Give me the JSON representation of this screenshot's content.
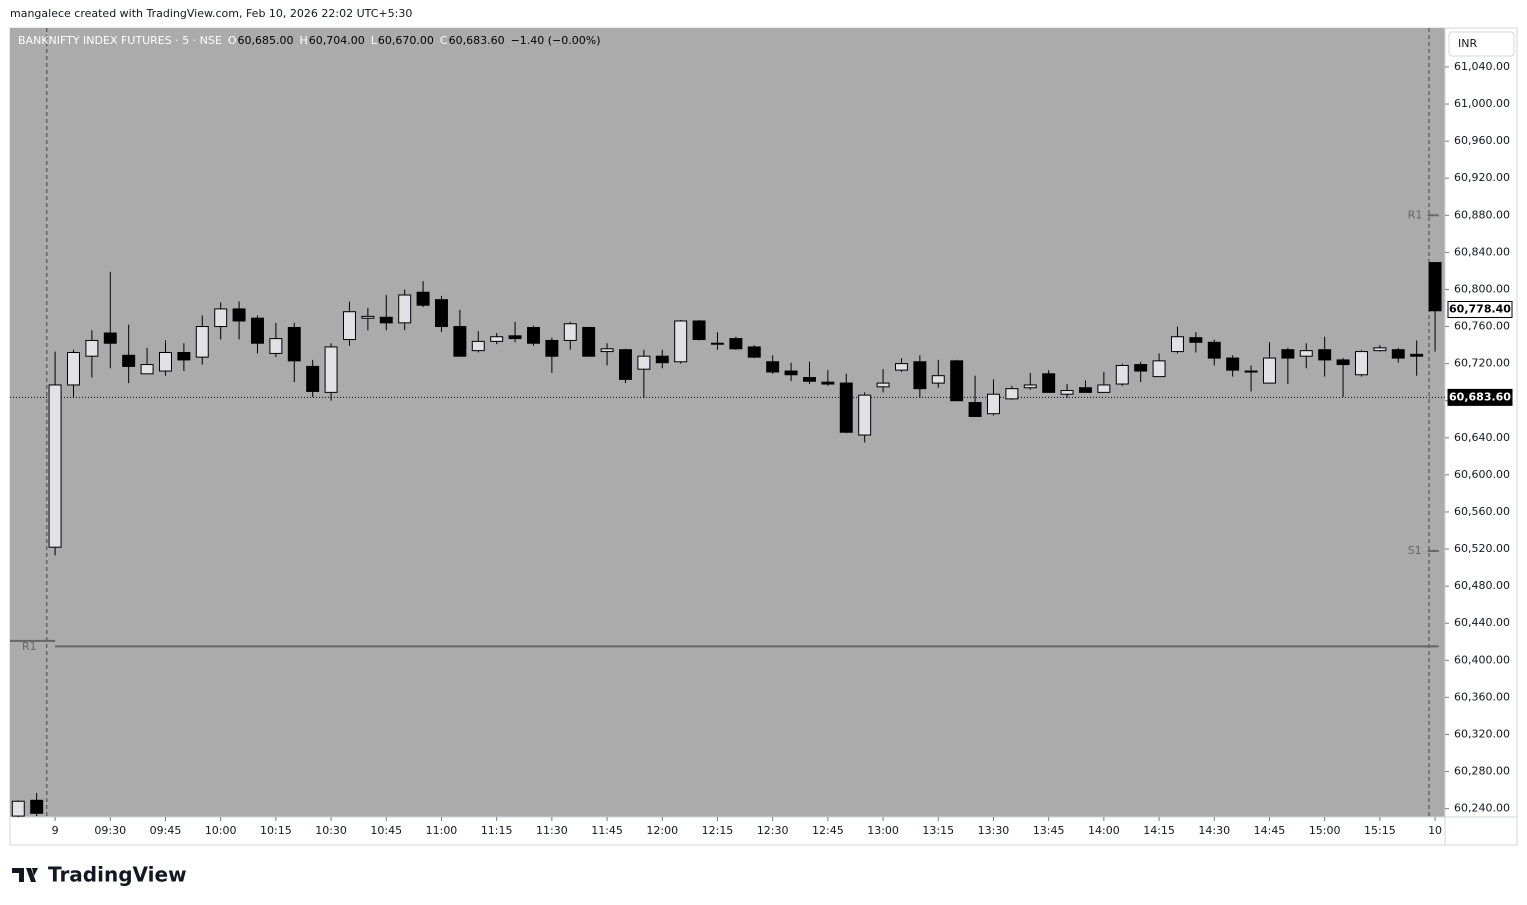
{
  "caption": "mangalece created with TradingView.com, Feb 10, 2026 22:02 UTC+5:30",
  "brand": "TradingView",
  "currency": "INR",
  "legend": {
    "symbol": "BANKNIFTY INDEX FUTURES · 5 · NSE",
    "ohlc": [
      {
        "key": "O",
        "text": "60,685.00"
      },
      {
        "key": "H",
        "text": "60,704.00"
      },
      {
        "key": "L",
        "text": "60,670.00"
      },
      {
        "key": "C",
        "text": "60,683.60"
      }
    ],
    "change": "−1.40 (−0.00%)"
  },
  "chart_data": {
    "type": "candlestick",
    "x": [
      -2,
      -1,
      0,
      1,
      2,
      3,
      4,
      5,
      6,
      7,
      8,
      9,
      10,
      11,
      12,
      13,
      14,
      15,
      16,
      17,
      18,
      19,
      20,
      21,
      22,
      23,
      24,
      25,
      26,
      27,
      28,
      29,
      30,
      31,
      32,
      33,
      34,
      35,
      36,
      37,
      38,
      39,
      40,
      41,
      42,
      43,
      44,
      45,
      46,
      47,
      48,
      49,
      50,
      51,
      52,
      53,
      54,
      55,
      56,
      57,
      58,
      59,
      60,
      61,
      62,
      63,
      64,
      65,
      66,
      67,
      68,
      69,
      70,
      71,
      72,
      73,
      74,
      75
    ],
    "open": [
      60232,
      60249,
      60522,
      60697,
      60728,
      60753,
      60729,
      60709,
      60712,
      60732,
      60727,
      60760,
      60779,
      60769,
      60731,
      60759,
      60717,
      60689,
      60746,
      60769,
      60770,
      60764,
      60797,
      60789,
      60760,
      60734,
      60744,
      60750,
      60759,
      60745,
      60745,
      60759,
      60733,
      60735,
      60714,
      60728,
      60722,
      60766,
      60742,
      60747,
      60738,
      60722,
      60712,
      60705,
      60700,
      60699,
      60643,
      60695,
      60713,
      60722,
      60699,
      60723,
      60678,
      60666,
      60682,
      60694,
      60709,
      60687,
      60694,
      60689,
      60698,
      60719,
      60706,
      60733,
      60748,
      60743,
      60726,
      60712,
      60699,
      60735,
      60728,
      60735,
      60724,
      60708,
      60734,
      60735,
      60730,
      60829
    ],
    "high": [
      60249,
      60257,
      60733,
      60735,
      60756,
      60819,
      60762,
      60737,
      60745,
      60742,
      60772,
      60786,
      60787,
      60772,
      60764,
      60764,
      60724,
      60742,
      60787,
      60780,
      60794,
      60800,
      60809,
      60793,
      60778,
      60755,
      60753,
      60765,
      60761,
      60748,
      60765,
      60759,
      60742,
      60736,
      60735,
      60735,
      60767,
      60767,
      60754,
      60749,
      60740,
      60729,
      60721,
      60722,
      60713,
      60709,
      60689,
      60714,
      60726,
      60729,
      60724,
      60724,
      60707,
      60703,
      60696,
      60710,
      60713,
      60698,
      60702,
      60711,
      60720,
      60722,
      60731,
      60760,
      60754,
      60746,
      60729,
      60718,
      60743,
      60737,
      60742,
      60749,
      60726,
      60735,
      60740,
      60737,
      60745,
      60829
    ],
    "low": [
      60231,
      60232,
      60513,
      60683,
      60705,
      60715,
      60699,
      60709,
      60707,
      60712,
      60719,
      60746,
      60746,
      60731,
      60727,
      60700,
      60684,
      60680,
      60739,
      60756,
      60756,
      60756,
      60781,
      60754,
      60728,
      60732,
      60741,
      60743,
      60739,
      60710,
      60735,
      60728,
      60718,
      60699,
      60683,
      60715,
      60720,
      60745,
      60735,
      60735,
      60726,
      60709,
      60701,
      60698,
      60696,
      60645,
      60635,
      60689,
      60711,
      60683,
      60694,
      60680,
      60663,
      60664,
      60681,
      60692,
      60689,
      60683,
      60689,
      60689,
      60696,
      60700,
      60706,
      60731,
      60732,
      60718,
      60706,
      60690,
      60699,
      60698,
      60715,
      60706,
      60684,
      60706,
      60733,
      60721,
      60707,
      60733
    ],
    "close": [
      60248,
      60235,
      60697,
      60732,
      60745,
      60742,
      60717,
      60719,
      60732,
      60724,
      60760,
      60779,
      60766,
      60742,
      60747,
      60723,
      60690,
      60738,
      60776,
      60771,
      60764,
      60794,
      60783,
      60760,
      60728,
      60744,
      60749,
      60747,
      60742,
      60728,
      60763,
      60728,
      60736,
      60703,
      60728,
      60721,
      60766,
      60746,
      60741,
      60736,
      60727,
      60711,
      60708,
      60701,
      60698,
      60646,
      60686,
      60699,
      60720,
      60693,
      60707,
      60680,
      60663,
      60687,
      60693,
      60697,
      60689,
      60691,
      60689,
      60697,
      60718,
      60712,
      60723,
      60749,
      60743,
      60726,
      60713,
      60711,
      60726,
      60726,
      60734,
      60724,
      60719,
      60733,
      60737,
      60726,
      60728,
      60777
    ],
    "up_color": "#e1e1e6",
    "down_color": "#000000",
    "xlim": [
      -2.45,
      75.54
    ],
    "ylim": [
      60231,
      61082
    ],
    "xticks": [
      {
        "value": 0,
        "label": "9"
      },
      {
        "value": 3,
        "label": "09:30"
      },
      {
        "value": 6,
        "label": "09:45"
      },
      {
        "value": 9,
        "label": "10:00"
      },
      {
        "value": 12,
        "label": "10:15"
      },
      {
        "value": 15,
        "label": "10:30"
      },
      {
        "value": 18,
        "label": "10:45"
      },
      {
        "value": 21,
        "label": "11:00"
      },
      {
        "value": 24,
        "label": "11:15"
      },
      {
        "value": 27,
        "label": "11:30"
      },
      {
        "value": 30,
        "label": "11:45"
      },
      {
        "value": 33,
        "label": "12:00"
      },
      {
        "value": 36,
        "label": "12:15"
      },
      {
        "value": 39,
        "label": "12:30"
      },
      {
        "value": 42,
        "label": "12:45"
      },
      {
        "value": 45,
        "label": "13:00"
      },
      {
        "value": 48,
        "label": "13:15"
      },
      {
        "value": 51,
        "label": "13:30"
      },
      {
        "value": 54,
        "label": "13:45"
      },
      {
        "value": 57,
        "label": "14:00"
      },
      {
        "value": 60,
        "label": "14:15"
      },
      {
        "value": 63,
        "label": "14:30"
      },
      {
        "value": 66,
        "label": "14:45"
      },
      {
        "value": 69,
        "label": "15:00"
      },
      {
        "value": 72,
        "label": "15:15"
      },
      {
        "value": 75,
        "label": "10"
      }
    ],
    "yticks": [
      {
        "value": 60240,
        "label": "60,240.00"
      },
      {
        "value": 60280,
        "label": "60,280.00"
      },
      {
        "value": 60320,
        "label": "60,320.00"
      },
      {
        "value": 60360,
        "label": "60,360.00"
      },
      {
        "value": 60400,
        "label": "60,400.00"
      },
      {
        "value": 60440,
        "label": "60,440.00"
      },
      {
        "value": 60480,
        "label": "60,480.00"
      },
      {
        "value": 60520,
        "label": "60,520.00"
      },
      {
        "value": 60560,
        "label": "60,560.00"
      },
      {
        "value": 60600,
        "label": "60,600.00"
      },
      {
        "value": 60640,
        "label": "60,640.00"
      },
      {
        "value": 60680,
        "label": "60,680.00"
      },
      {
        "value": 60720,
        "label": "60,720.00"
      },
      {
        "value": 60760,
        "label": "60,760.00"
      },
      {
        "value": 60800,
        "label": "60,800.00"
      },
      {
        "value": 60840,
        "label": "60,840.00"
      },
      {
        "value": 60880,
        "label": "60,880.00"
      },
      {
        "value": 60920,
        "label": "60,920.00"
      },
      {
        "value": 60960,
        "label": "60,960.00"
      },
      {
        "value": 61000,
        "label": "61,000.00"
      },
      {
        "value": 61040,
        "label": "61,040.00"
      }
    ],
    "session_breaks": [
      -0.45,
      74.67
    ],
    "levels": [
      {
        "label": "R1",
        "value": 60421,
        "from": -2.45,
        "to": 0
      },
      {
        "value": 60415,
        "from": 0,
        "to": 75.2
      },
      {
        "label": "R1",
        "value": 60880,
        "from": 74.6,
        "to": 75.2
      },
      {
        "label": "S1",
        "value": 60518,
        "from": 74.6,
        "to": 75.2
      }
    ],
    "last_price": {
      "value": 60683.6,
      "label": "60,683.60"
    },
    "current_price": {
      "value": 60778.4,
      "label": "60,778.40"
    }
  }
}
